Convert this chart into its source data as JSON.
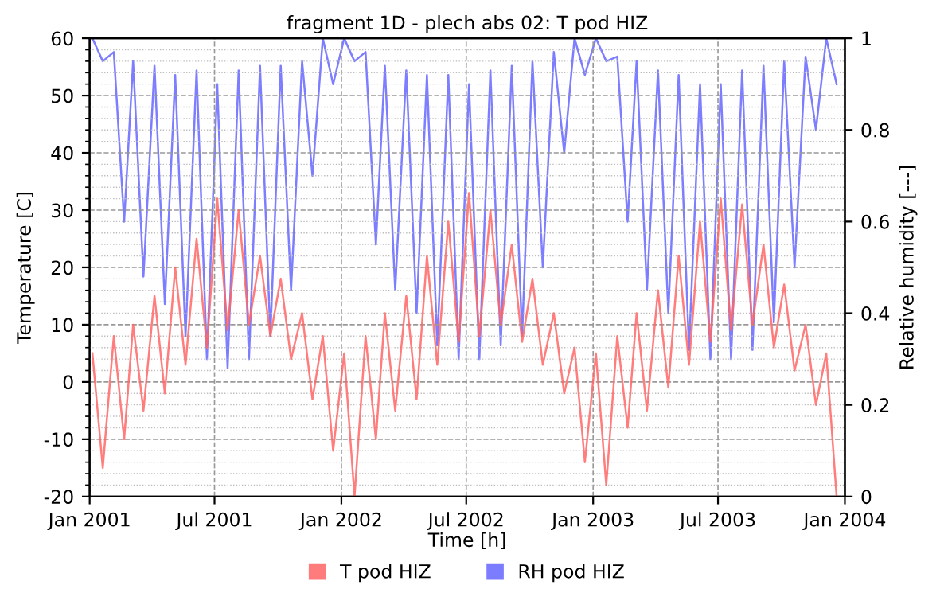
{
  "chart_data": {
    "type": "line",
    "title": "fragment 1D - plech abs 02: T pod HIZ",
    "xlabel": "Time [h]",
    "ylabel": "Temperature [C]",
    "y2label": "Relative humidity [---]",
    "x": [
      "2001-01-05",
      "2001-01-20",
      "2001-02-05",
      "2001-02-20",
      "2001-03-05",
      "2001-03-20",
      "2001-04-05",
      "2001-04-20",
      "2001-05-05",
      "2001-05-20",
      "2001-06-05",
      "2001-06-20",
      "2001-07-05",
      "2001-07-20",
      "2001-08-05",
      "2001-08-20",
      "2001-09-05",
      "2001-09-20",
      "2001-10-05",
      "2001-10-20",
      "2001-11-05",
      "2001-11-20",
      "2001-12-05",
      "2001-12-20",
      "2002-01-05",
      "2002-01-20",
      "2002-02-05",
      "2002-02-20",
      "2002-03-05",
      "2002-03-20",
      "2002-04-05",
      "2002-04-20",
      "2002-05-05",
      "2002-05-20",
      "2002-06-05",
      "2002-06-20",
      "2002-07-05",
      "2002-07-20",
      "2002-08-05",
      "2002-08-20",
      "2002-09-05",
      "2002-09-20",
      "2002-10-05",
      "2002-10-20",
      "2002-11-05",
      "2002-11-20",
      "2002-12-05",
      "2002-12-20",
      "2003-01-05",
      "2003-01-20",
      "2003-02-05",
      "2003-02-20",
      "2003-03-05",
      "2003-03-20",
      "2003-04-05",
      "2003-04-20",
      "2003-05-05",
      "2003-05-20",
      "2003-06-05",
      "2003-06-20",
      "2003-07-05",
      "2003-07-20",
      "2003-08-05",
      "2003-08-20",
      "2003-09-05",
      "2003-09-20",
      "2003-10-05",
      "2003-10-20",
      "2003-11-05",
      "2003-11-20",
      "2003-12-05",
      "2003-12-20"
    ],
    "series": [
      {
        "name": "T pod HIZ",
        "color": "#ff6666",
        "values": [
          5,
          -15,
          8,
          -10,
          10,
          -5,
          15,
          -2,
          20,
          3,
          25,
          6,
          32,
          9,
          30,
          10,
          22,
          8,
          18,
          4,
          12,
          -3,
          8,
          -12,
          5,
          -20,
          8,
          -10,
          12,
          -5,
          15,
          -3,
          22,
          3,
          28,
          7,
          33,
          8,
          30,
          10,
          24,
          7,
          18,
          3,
          12,
          -2,
          6,
          -14,
          5,
          -18,
          8,
          -8,
          12,
          -5,
          16,
          -1,
          22,
          3,
          28,
          7,
          32,
          9,
          31,
          10,
          24,
          6,
          17,
          2,
          10,
          -4,
          5,
          -20
        ]
      },
      {
        "name": "RH pod HIZ",
        "color": "#6666ff",
        "axis": "y2",
        "values": [
          1.0,
          0.95,
          0.97,
          0.6,
          0.95,
          0.48,
          0.94,
          0.42,
          0.92,
          0.35,
          0.93,
          0.3,
          0.9,
          0.28,
          0.93,
          0.3,
          0.94,
          0.35,
          0.94,
          0.45,
          0.95,
          0.7,
          1.0,
          0.9,
          1.0,
          0.95,
          0.97,
          0.55,
          0.94,
          0.45,
          0.93,
          0.4,
          0.92,
          0.33,
          0.92,
          0.3,
          0.9,
          0.3,
          0.93,
          0.33,
          0.94,
          0.35,
          0.95,
          0.5,
          0.97,
          0.75,
          1.0,
          0.92,
          1.0,
          0.95,
          0.96,
          0.6,
          0.95,
          0.45,
          0.93,
          0.4,
          0.92,
          0.32,
          0.9,
          0.3,
          0.9,
          0.3,
          0.93,
          0.32,
          0.94,
          0.38,
          0.95,
          0.5,
          0.96,
          0.8,
          1.0,
          0.9
        ]
      }
    ],
    "xlim": [
      "2001-01-01",
      "2004-01-01"
    ],
    "xticks": [
      {
        "value": "2001-01-01",
        "label": "Jan 2001"
      },
      {
        "value": "2001-07-01",
        "label": "Jul 2001"
      },
      {
        "value": "2002-01-01",
        "label": "Jan 2002"
      },
      {
        "value": "2002-07-01",
        "label": "Jul 2002"
      },
      {
        "value": "2003-01-01",
        "label": "Jan 2003"
      },
      {
        "value": "2003-07-01",
        "label": "Jul 2003"
      },
      {
        "value": "2004-01-01",
        "label": "Jan 2004"
      }
    ],
    "ylim": [
      -20,
      60
    ],
    "yticks": [
      -20,
      -10,
      0,
      10,
      20,
      30,
      40,
      50,
      60
    ],
    "y2lim": [
      0,
      1
    ],
    "y2ticks": [
      0,
      0.2,
      0.4,
      0.6,
      0.8,
      1
    ],
    "grid": true,
    "legend": "bottom",
    "marker": "none",
    "line_style": "solid"
  }
}
